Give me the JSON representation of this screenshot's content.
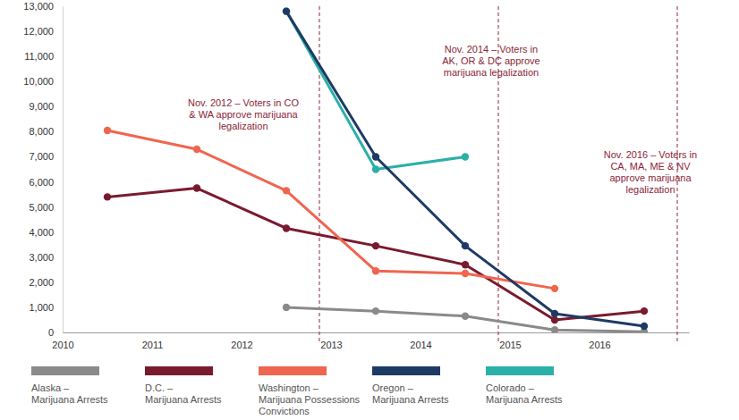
{
  "chart_data": {
    "type": "line",
    "x": [
      2010.5,
      2011.5,
      2012.5,
      2013.5,
      2014.5,
      2015.5,
      2016.5
    ],
    "xlim": [
      2010,
      2017
    ],
    "xticks": [
      2010,
      2011,
      2012,
      2013,
      2014,
      2015,
      2016
    ],
    "ylim": [
      0,
      13000
    ],
    "yticks": [
      0,
      {
        "value": 1000,
        "label": "1,000"
      },
      {
        "value": 2000,
        "label": "2,000"
      },
      {
        "value": 3000,
        "label": "3,000"
      },
      {
        "value": 4000,
        "label": "4,000"
      },
      {
        "value": 5000,
        "label": "5,000"
      },
      {
        "value": 6000,
        "label": "6,000"
      },
      {
        "value": 7000,
        "label": "7,000"
      },
      {
        "value": 8000,
        "label": "8,000"
      },
      {
        "value": 9000,
        "label": "9,000"
      },
      {
        "value": 10000,
        "label": "10,000"
      },
      {
        "value": 11000,
        "label": "11,000"
      },
      {
        "value": 12000,
        "label": "12,000"
      },
      {
        "value": 13000,
        "label": "13,000"
      }
    ],
    "grid": false,
    "marker": "circle",
    "series": [
      {
        "name": "Alaska – Marijuana Arrests",
        "color": "#8a8a8a",
        "values": [
          null,
          null,
          1000,
          850,
          650,
          100,
          30
        ]
      },
      {
        "name": "D.C. – Marijuana Arrests",
        "color": "#7a1a2e",
        "values": [
          5400,
          5750,
          4150,
          3450,
          2700,
          500,
          850
        ]
      },
      {
        "name": "Washington – Marijuana Possessions Convictions",
        "color": "#f0654f",
        "values": [
          8050,
          7300,
          5650,
          2450,
          2350,
          1750,
          null
        ]
      },
      {
        "name": "Oregon – Marijuana Arrests",
        "color": "#1e3a64",
        "values": [
          null,
          null,
          12800,
          7000,
          3450,
          750,
          250
        ]
      },
      {
        "name": "Colorado – Marijuana Arrests",
        "color": "#2bb0a8",
        "values": [
          null,
          null,
          12800,
          6500,
          7000,
          null,
          null
        ]
      }
    ],
    "annotations": [
      {
        "x": 2012.87,
        "lines": [
          "Nov. 2012 – Voters in CO",
          "& WA approve marijuana",
          "legalization"
        ]
      },
      {
        "x": 2014.87,
        "lines": [
          "Nov. 2014 – Voters in",
          "AK, OR & DC approve",
          "marijuana legalization"
        ]
      },
      {
        "x": 2016.87,
        "lines": [
          "Nov. 2016 – Voters in",
          "CA, MA, ME & NV",
          "approve marijuana",
          "legalization"
        ]
      }
    ]
  }
}
